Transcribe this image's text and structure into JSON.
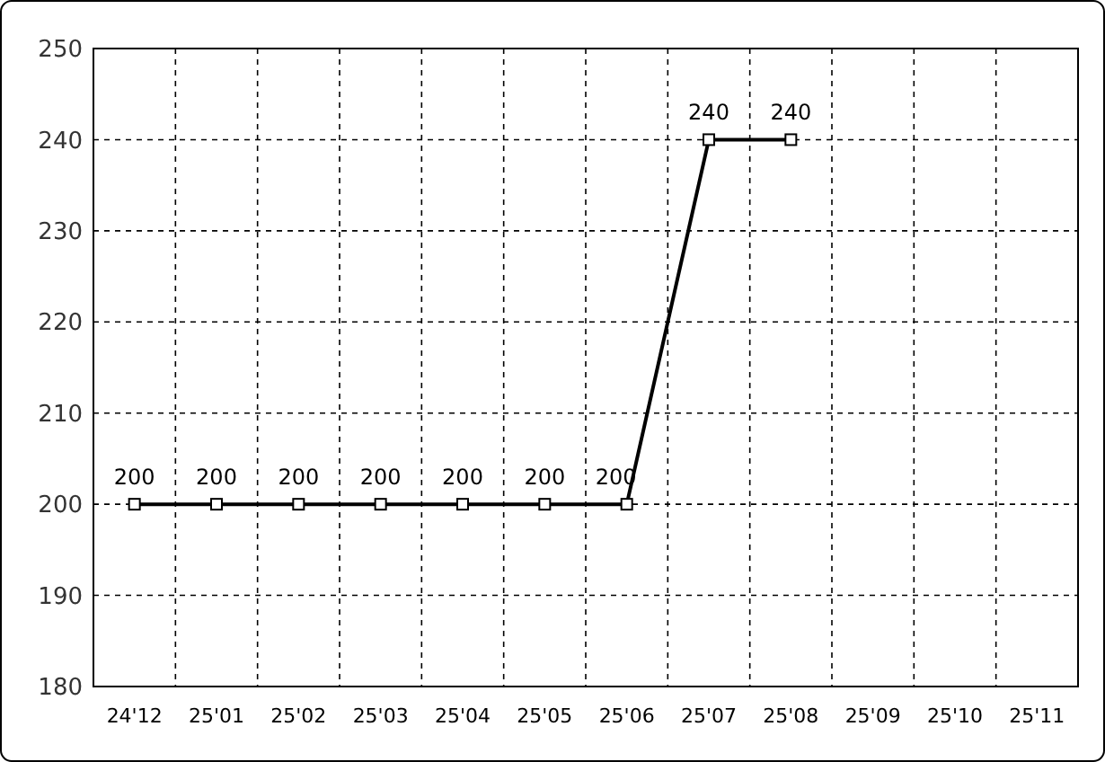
{
  "chart_data": {
    "type": "line",
    "categories": [
      "24'12",
      "25'01",
      "25'02",
      "25'03",
      "25'04",
      "25'05",
      "25'06",
      "25'07",
      "25'08",
      "25'09",
      "25'10",
      "25'11"
    ],
    "series": [
      {
        "color": "#000000",
        "values": [
          200,
          200,
          200,
          200,
          200,
          200,
          200,
          240,
          240,
          null,
          null,
          null
        ]
      }
    ],
    "ylim": [
      180,
      250
    ],
    "yticks": [
      180,
      190,
      200,
      210,
      220,
      230,
      240,
      250
    ],
    "grid": true,
    "data_labels": true,
    "marker": "square",
    "line_style": "solid"
  }
}
